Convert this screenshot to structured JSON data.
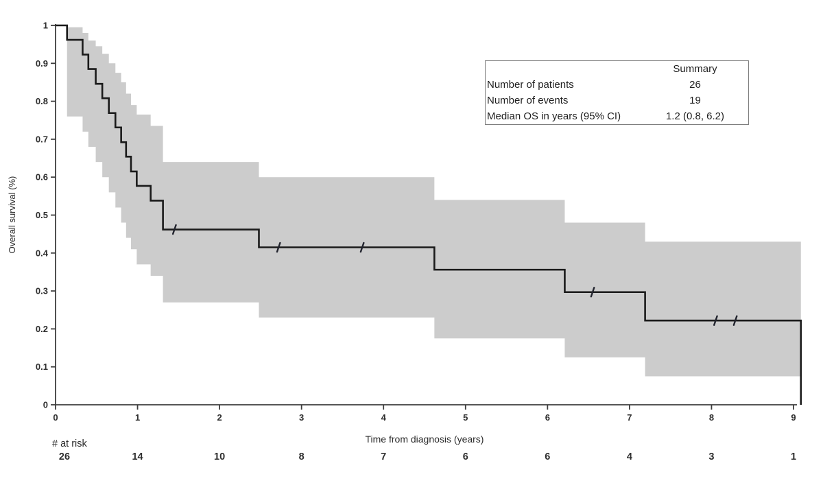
{
  "chart_data": {
    "type": "line",
    "subtype": "kaplan-meier-step",
    "title": "",
    "xlabel": "Time from diagnosis (years)",
    "ylabel": "Overall survival (%)",
    "xlim": [
      0,
      9.15
    ],
    "ylim": [
      0,
      1
    ],
    "x_ticks": [
      "0",
      "1",
      "2",
      "3",
      "4",
      "5",
      "6",
      "7",
      "8",
      "9"
    ],
    "y_ticks": [
      "0",
      "0.1",
      "0.2",
      "0.3",
      "0.4",
      "0.5",
      "0.6",
      "0.7",
      "0.8",
      "0.9",
      "1"
    ],
    "grid": false,
    "legend": "none",
    "km_steps": [
      {
        "t": 0.0,
        "s": 1.0
      },
      {
        "t": 0.14,
        "s": 0.962,
        "lo": 0.76,
        "hi": 0.995
      },
      {
        "t": 0.33,
        "s": 0.923,
        "lo": 0.72,
        "hi": 0.98
      },
      {
        "t": 0.4,
        "s": 0.885,
        "lo": 0.68,
        "hi": 0.96
      },
      {
        "t": 0.49,
        "s": 0.846,
        "lo": 0.64,
        "hi": 0.945
      },
      {
        "t": 0.57,
        "s": 0.808,
        "lo": 0.6,
        "hi": 0.925
      },
      {
        "t": 0.65,
        "s": 0.769,
        "lo": 0.56,
        "hi": 0.9
      },
      {
        "t": 0.73,
        "s": 0.731,
        "lo": 0.52,
        "hi": 0.875
      },
      {
        "t": 0.8,
        "s": 0.692,
        "lo": 0.48,
        "hi": 0.85
      },
      {
        "t": 0.86,
        "s": 0.654,
        "lo": 0.44,
        "hi": 0.82
      },
      {
        "t": 0.92,
        "s": 0.615,
        "lo": 0.41,
        "hi": 0.79
      },
      {
        "t": 0.99,
        "s": 0.577,
        "lo": 0.37,
        "hi": 0.765
      },
      {
        "t": 1.16,
        "s": 0.538,
        "lo": 0.34,
        "hi": 0.735
      },
      {
        "t": 1.31,
        "s": 0.462,
        "lo": 0.27,
        "hi": 0.64
      },
      {
        "t": 2.48,
        "s": 0.415,
        "lo": 0.23,
        "hi": 0.6
      },
      {
        "t": 4.62,
        "s": 0.356,
        "lo": 0.175,
        "hi": 0.54
      },
      {
        "t": 6.21,
        "s": 0.297,
        "lo": 0.125,
        "hi": 0.48
      },
      {
        "t": 7.19,
        "s": 0.222,
        "lo": 0.075,
        "hi": 0.43
      },
      {
        "t": 9.09,
        "s": 0.0
      }
    ],
    "censor_marks": [
      {
        "t": 1.45,
        "s": 0.462
      },
      {
        "t": 2.72,
        "s": 0.415
      },
      {
        "t": 3.74,
        "s": 0.415
      },
      {
        "t": 6.55,
        "s": 0.297
      },
      {
        "t": 8.05,
        "s": 0.222
      },
      {
        "t": 8.29,
        "s": 0.222
      }
    ],
    "at_risk": {
      "label": "# at risk",
      "times": [
        0,
        1,
        2,
        3,
        4,
        5,
        6,
        7,
        8,
        9
      ],
      "counts": [
        "26",
        "14",
        "10",
        "8",
        "7",
        "6",
        "6",
        "4",
        "3",
        "1"
      ]
    },
    "colors": {
      "curve": "#1a1a1a",
      "band": "#cccccc",
      "axis": "#3d3d3d",
      "tick_text": "#2e2e2e",
      "label_text": "#2b2b2b",
      "censor": "#22242e"
    }
  },
  "summary_table": {
    "header": "Summary",
    "rows": [
      {
        "label": "Number of patients",
        "value": "26"
      },
      {
        "label": "Number of events",
        "value": "19"
      },
      {
        "label": "Median OS in years (95% CI)",
        "value": "1.2 (0.8, 6.2)"
      }
    ]
  }
}
